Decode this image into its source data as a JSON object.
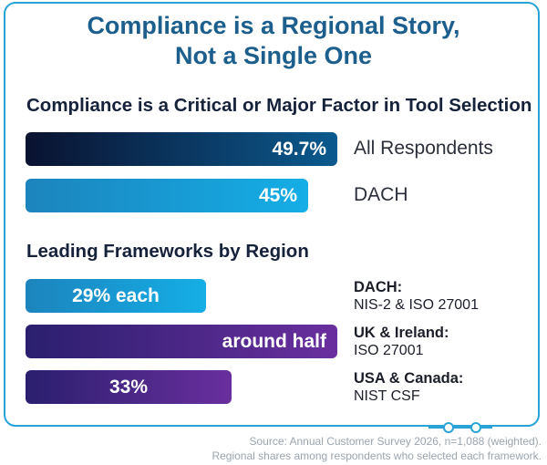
{
  "title": {
    "line1": "Compliance is a Regional Story,",
    "line2": "Not a Single One"
  },
  "chart_data": [
    {
      "type": "bar",
      "orientation": "horizontal",
      "title": "Compliance is a Critical or Major Factor in Tool Selection",
      "categories": [
        "All Respondents",
        "DACH"
      ],
      "values": [
        49.7,
        45
      ],
      "data_labels": [
        "49.7%",
        "45%"
      ],
      "unit": "%"
    },
    {
      "type": "bar",
      "orientation": "horizontal",
      "title": "Leading Frameworks by Region",
      "categories": [
        {
          "region": "DACH:",
          "frameworks": "NIS-2 & ISO 27001"
        },
        {
          "region": "UK & Ireland:",
          "frameworks": "ISO 27001"
        },
        {
          "region": "USA & Canada:",
          "frameworks": "NIST CSF"
        }
      ],
      "values": [
        29,
        50,
        33
      ],
      "data_labels": [
        "29% each",
        "around half",
        "33%"
      ],
      "unit": "%"
    }
  ],
  "colors": {
    "accent": "#29a3d6",
    "title": "#1c5f8d",
    "navy_start": "#0a1230",
    "navy_end": "#0b5a8e",
    "blue_start": "#1c84bd",
    "blue_end": "#15aee6",
    "purple_start": "#2a1f6e",
    "purple_end": "#6a2f9e"
  },
  "footnote": {
    "line1": "Source: Annual Customer Survey 2026, n=1,088 (weighted).",
    "line2": "Regional shares among respondents who selected each framework."
  }
}
